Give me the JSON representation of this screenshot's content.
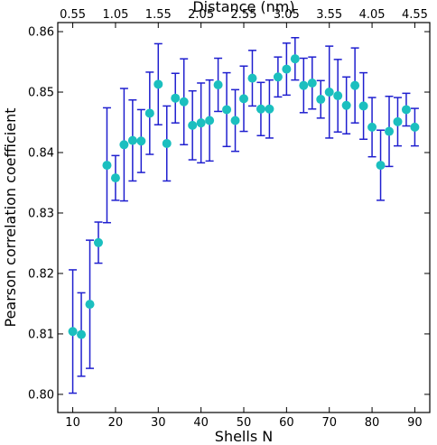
{
  "chart_data": {
    "type": "scatter",
    "title": "",
    "xlabel": "Shells N",
    "ylabel": "Pearson correlation coefficient",
    "x2label": "Distance (nm)",
    "xlim": [
      6.5,
      93.5
    ],
    "ylim": [
      0.797,
      0.8615
    ],
    "xticks": [
      10,
      20,
      30,
      40,
      50,
      60,
      70,
      80,
      90
    ],
    "xtick_labels": [
      "10",
      "20",
      "30",
      "40",
      "50",
      "60",
      "70",
      "80",
      "90"
    ],
    "yticks": [
      0.8,
      0.81,
      0.82,
      0.83,
      0.84,
      0.85,
      0.86
    ],
    "ytick_labels": [
      "0.80",
      "0.81",
      "0.82",
      "0.83",
      "0.84",
      "0.85",
      "0.86"
    ],
    "x2ticks_shells": [
      10,
      20,
      30,
      40,
      50,
      60,
      70,
      80,
      90
    ],
    "x2tick_labels": [
      "0.55",
      "1.05",
      "1.55",
      "2.05",
      "2.55",
      "3.05",
      "3.55",
      "4.05",
      "4.55"
    ],
    "grid": false,
    "marker_color": "#1bbfbf",
    "errorbar_color": "#1f1fcf",
    "series": [
      {
        "x": [
          10,
          12,
          14,
          16,
          18,
          20,
          22,
          24,
          26,
          28,
          30,
          32,
          34,
          36,
          38,
          40,
          42,
          44,
          46,
          48,
          50,
          52,
          54,
          56,
          58,
          60,
          62,
          64,
          66,
          68,
          70,
          72,
          74,
          76,
          78,
          80,
          82,
          84,
          86,
          88,
          90
        ],
        "y": [
          0.8104,
          0.8099,
          0.8149,
          0.8251,
          0.8379,
          0.8358,
          0.8413,
          0.842,
          0.8419,
          0.8465,
          0.8513,
          0.8415,
          0.849,
          0.8484,
          0.8445,
          0.8449,
          0.8453,
          0.8512,
          0.8471,
          0.8453,
          0.8489,
          0.8523,
          0.8472,
          0.8472,
          0.8525,
          0.8538,
          0.8555,
          0.8511,
          0.8515,
          0.8488,
          0.85,
          0.8494,
          0.8478,
          0.8511,
          0.8477,
          0.8442,
          0.8379,
          0.8435,
          0.8451,
          0.8471,
          0.8442
        ],
        "err": [
          0.0102,
          0.0069,
          0.0106,
          0.0034,
          0.0095,
          0.0037,
          0.0093,
          0.0067,
          0.0052,
          0.0068,
          0.0067,
          0.0062,
          0.0041,
          0.0071,
          0.0057,
          0.0066,
          0.0067,
          0.0044,
          0.0061,
          0.0051,
          0.0054,
          0.0046,
          0.0044,
          0.0048,
          0.0033,
          0.0043,
          0.0035,
          0.0045,
          0.0043,
          0.0031,
          0.0076,
          0.006,
          0.0047,
          0.0062,
          0.0055,
          0.0049,
          0.0058,
          0.0058,
          0.004,
          0.0027,
          0.0031
        ]
      }
    ]
  }
}
